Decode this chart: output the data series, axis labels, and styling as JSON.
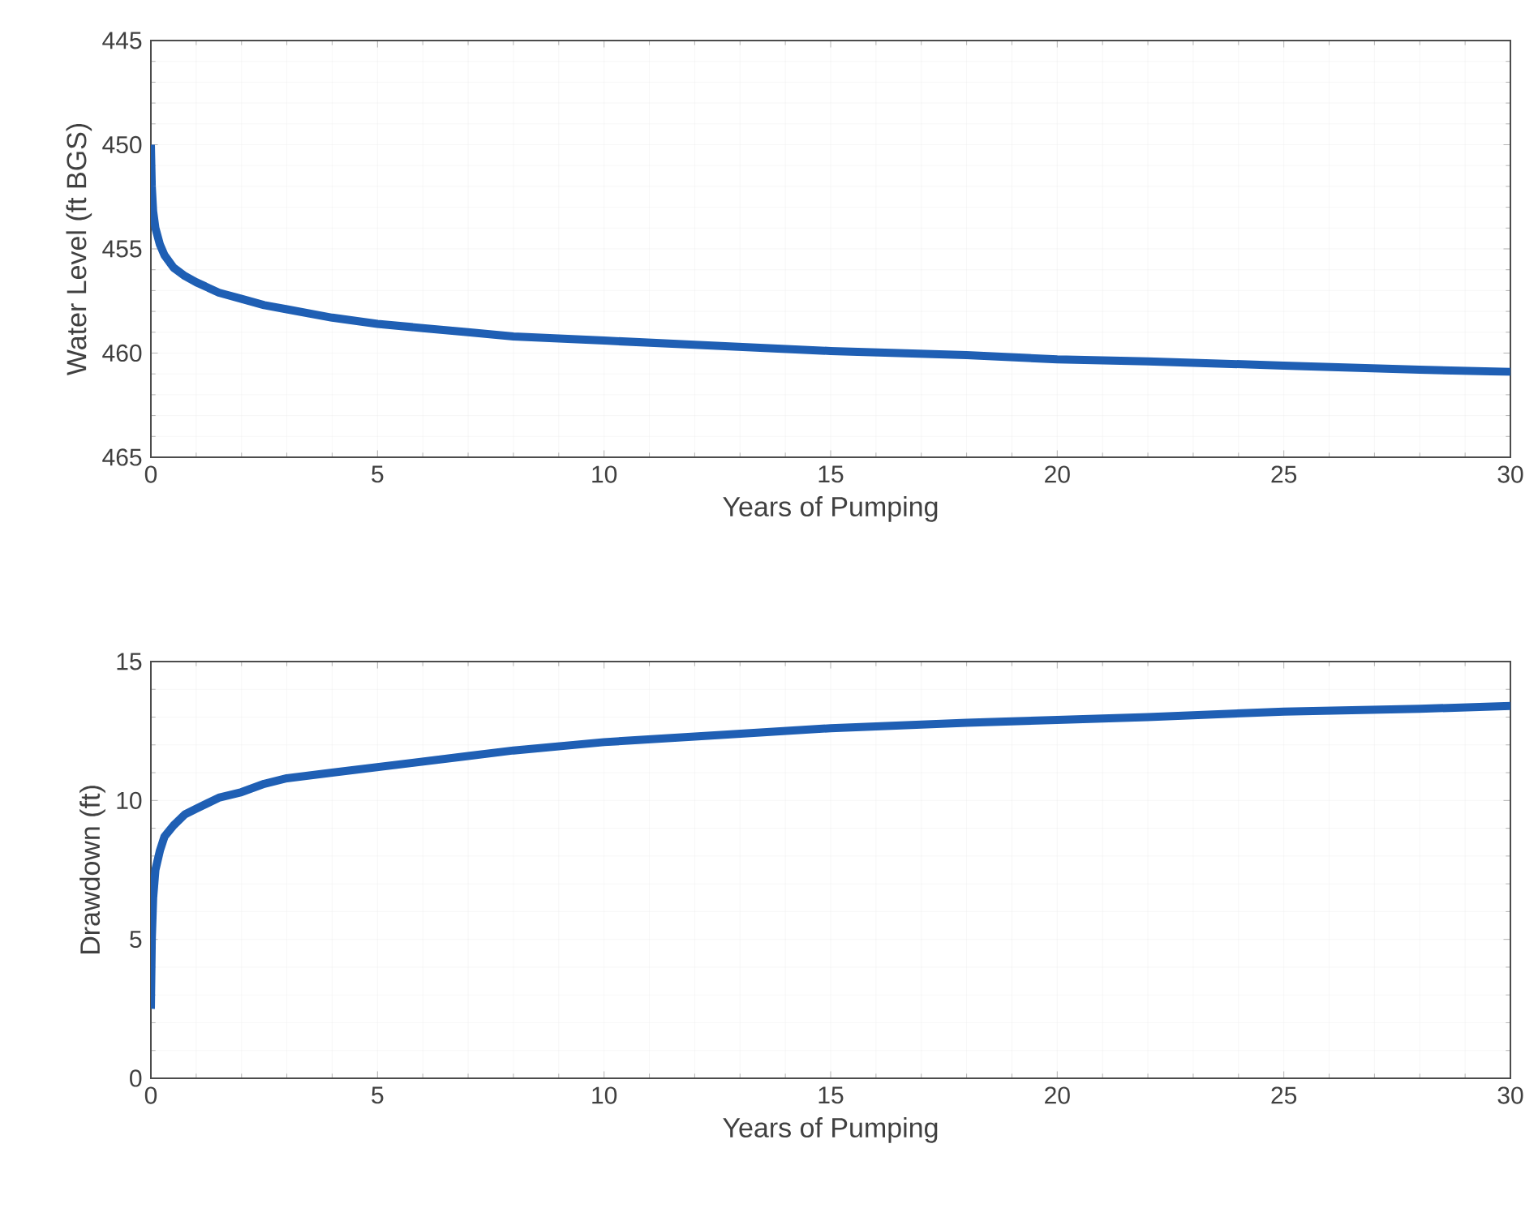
{
  "chart_data": [
    {
      "type": "line",
      "xlabel": "Years of Pumping",
      "ylabel": "Water Level (ft BGS)",
      "xlim": [
        0,
        30
      ],
      "ylim": [
        465,
        445
      ],
      "xticks": [
        0,
        5,
        10,
        15,
        20,
        25,
        30
      ],
      "yticks": [
        445,
        450,
        455,
        460,
        465
      ],
      "grid": true,
      "line_style": "solid",
      "series": [
        {
          "color": "#1f5fb4",
          "x": [
            0,
            0.02,
            0.05,
            0.1,
            0.2,
            0.3,
            0.5,
            0.75,
            1,
            1.5,
            2,
            2.5,
            3,
            4,
            5,
            6,
            7,
            8,
            10,
            12,
            15,
            18,
            20,
            22,
            25,
            28,
            30
          ],
          "values": [
            450,
            452,
            453.2,
            454,
            454.8,
            455.3,
            455.9,
            456.3,
            456.6,
            457.1,
            457.4,
            457.7,
            457.9,
            458.3,
            458.6,
            458.8,
            459,
            459.2,
            459.4,
            459.6,
            459.9,
            460.1,
            460.3,
            460.4,
            460.6,
            460.8,
            460.9
          ]
        }
      ]
    },
    {
      "type": "line",
      "xlabel": "Years of Pumping",
      "ylabel": "Drawdown (ft)",
      "xlim": [
        0,
        30
      ],
      "ylim": [
        0,
        15
      ],
      "xticks": [
        0,
        5,
        10,
        15,
        20,
        25,
        30
      ],
      "yticks": [
        0,
        5,
        10,
        15
      ],
      "grid": true,
      "line_style": "solid",
      "series": [
        {
          "color": "#1f5fb4",
          "x": [
            0,
            0.02,
            0.05,
            0.1,
            0.2,
            0.3,
            0.5,
            0.75,
            1,
            1.5,
            2,
            2.5,
            3,
            4,
            5,
            6,
            7,
            8,
            10,
            12,
            15,
            18,
            20,
            22,
            25,
            28,
            30
          ],
          "values": [
            2.5,
            5,
            6.5,
            7.5,
            8.2,
            8.7,
            9.1,
            9.5,
            9.7,
            10.1,
            10.3,
            10.6,
            10.8,
            11,
            11.2,
            11.4,
            11.6,
            11.8,
            12.1,
            12.3,
            12.6,
            12.8,
            12.9,
            13,
            13.2,
            13.3,
            13.4
          ]
        }
      ]
    }
  ]
}
